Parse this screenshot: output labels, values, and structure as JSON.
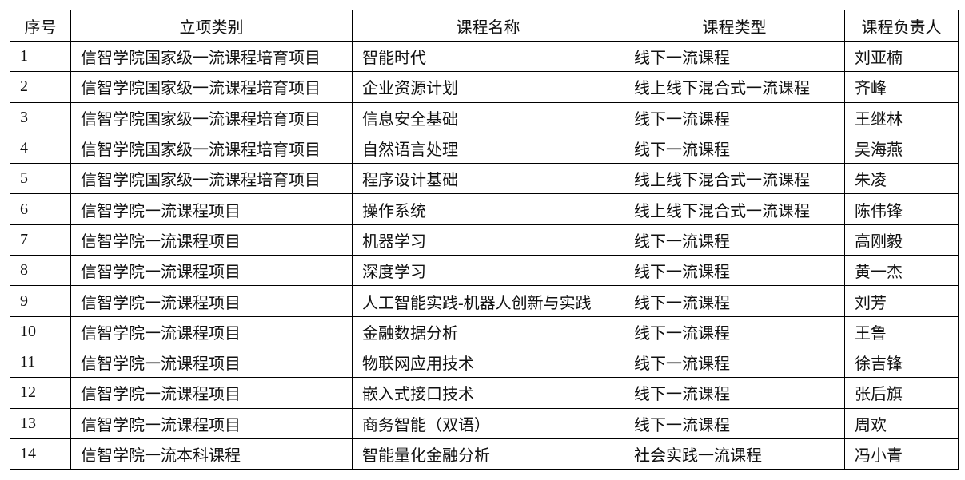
{
  "table": {
    "headers": [
      "序号",
      "立项类别",
      "课程名称",
      "课程类型",
      "课程负责人"
    ],
    "rows": [
      [
        "1",
        "信智学院国家级一流课程培育项目",
        "智能时代",
        "线下一流课程",
        "刘亚楠"
      ],
      [
        "2",
        "信智学院国家级一流课程培育项目",
        "企业资源计划",
        "线上线下混合式一流课程",
        "齐峰"
      ],
      [
        "3",
        "信智学院国家级一流课程培育项目",
        "信息安全基础",
        "线下一流课程",
        "王继林"
      ],
      [
        "4",
        "信智学院国家级一流课程培育项目",
        "自然语言处理",
        "线下一流课程",
        "吴海燕"
      ],
      [
        "5",
        "信智学院国家级一流课程培育项目",
        "程序设计基础",
        "线上线下混合式一流课程",
        "朱凌"
      ],
      [
        "6",
        "信智学院一流课程项目",
        "操作系统",
        "线上线下混合式一流课程",
        "陈伟锋"
      ],
      [
        "7",
        "信智学院一流课程项目",
        "机器学习",
        "线下一流课程",
        "高刚毅"
      ],
      [
        "8",
        "信智学院一流课程项目",
        "深度学习",
        "线下一流课程",
        "黄一杰"
      ],
      [
        "9",
        "信智学院一流课程项目",
        "人工智能实践-机器人创新与实践",
        "线下一流课程",
        "刘芳"
      ],
      [
        "10",
        "信智学院一流课程项目",
        "金融数据分析",
        "线下一流课程",
        "王鲁"
      ],
      [
        "11",
        "信智学院一流课程项目",
        "物联网应用技术",
        "线下一流课程",
        "徐吉锋"
      ],
      [
        "12",
        "信智学院一流课程项目",
        "嵌入式接口技术",
        "线下一流课程",
        "张后旗"
      ],
      [
        "13",
        "信智学院一流课程项目",
        "商务智能（双语）",
        "线下一流课程",
        "周欢"
      ],
      [
        "14",
        "信智学院一流本科课程",
        "智能量化金融分析",
        "社会实践一流课程",
        "冯小青"
      ]
    ]
  }
}
